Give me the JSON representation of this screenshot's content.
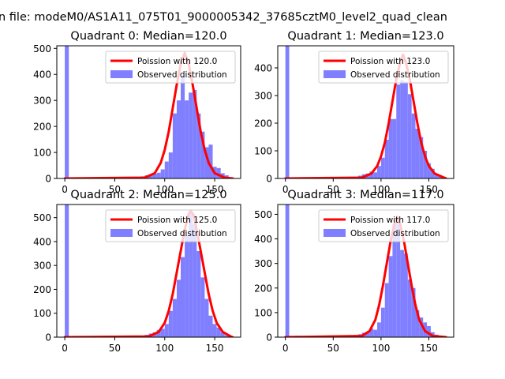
{
  "figure": {
    "suptitle": "n file: modeM0/AS1A11_075T01_9000005342_37685cztM0_level2_quad_clean"
  },
  "colors": {
    "histogram": "#7f7fff",
    "poisson": "#ff0000",
    "axes": "#000000",
    "background": "#ffffff"
  },
  "chart_data": [
    {
      "type": "bar",
      "title": "Quadrant 0: Median=120.0",
      "xlim": [
        -8,
        176
      ],
      "ylim": [
        0,
        510
      ],
      "xticks": [
        0,
        50,
        100,
        150
      ],
      "yticks": [
        0,
        100,
        200,
        300,
        400,
        500
      ],
      "bin_width": 4,
      "legend": {
        "placement": "upper right",
        "entries": [
          "Poission with 120.0",
          "Observed distribution"
        ]
      },
      "hist_bins": [
        [
          0,
          510
        ],
        [
          4,
          2
        ],
        [
          40,
          1
        ],
        [
          48,
          1
        ],
        [
          56,
          1
        ],
        [
          64,
          2
        ],
        [
          72,
          5
        ],
        [
          76,
          8
        ],
        [
          80,
          12
        ],
        [
          84,
          15
        ],
        [
          88,
          18
        ],
        [
          92,
          22
        ],
        [
          96,
          35
        ],
        [
          100,
          65
        ],
        [
          104,
          100
        ],
        [
          108,
          250
        ],
        [
          112,
          300
        ],
        [
          116,
          395
        ],
        [
          120,
          300
        ],
        [
          124,
          330
        ],
        [
          128,
          340
        ],
        [
          132,
          250
        ],
        [
          136,
          180
        ],
        [
          140,
          120
        ],
        [
          144,
          130
        ],
        [
          148,
          45
        ],
        [
          152,
          40
        ],
        [
          156,
          20
        ],
        [
          160,
          12
        ],
        [
          164,
          5
        ]
      ],
      "poisson_curve": {
        "name": "Poission with 120.0",
        "points": [
          [
            0,
            0
          ],
          [
            80,
            3
          ],
          [
            90,
            20
          ],
          [
            96,
            60
          ],
          [
            100,
            110
          ],
          [
            104,
            180
          ],
          [
            108,
            270
          ],
          [
            112,
            360
          ],
          [
            116,
            440
          ],
          [
            120,
            482
          ],
          [
            124,
            440
          ],
          [
            128,
            360
          ],
          [
            132,
            270
          ],
          [
            136,
            180
          ],
          [
            140,
            110
          ],
          [
            144,
            60
          ],
          [
            150,
            20
          ],
          [
            160,
            3
          ],
          [
            168,
            0
          ]
        ]
      }
    },
    {
      "type": "bar",
      "title": "Quadrant 1: Median=123.0",
      "xlim": [
        -8,
        176
      ],
      "ylim": [
        0,
        480
      ],
      "xticks": [
        0,
        50,
        100,
        150
      ],
      "yticks": [
        0,
        100,
        200,
        300,
        400
      ],
      "bin_width": 4,
      "legend": {
        "placement": "upper right",
        "entries": [
          "Poission with 123.0",
          "Observed distribution"
        ]
      },
      "hist_bins": [
        [
          0,
          480
        ],
        [
          4,
          2
        ],
        [
          40,
          1
        ],
        [
          56,
          2
        ],
        [
          64,
          2
        ],
        [
          72,
          6
        ],
        [
          76,
          10
        ],
        [
          80,
          15
        ],
        [
          84,
          18
        ],
        [
          88,
          25
        ],
        [
          92,
          22
        ],
        [
          96,
          45
        ],
        [
          100,
          75
        ],
        [
          104,
          140
        ],
        [
          108,
          215
        ],
        [
          112,
          215
        ],
        [
          116,
          340
        ],
        [
          120,
          355
        ],
        [
          124,
          350
        ],
        [
          128,
          305
        ],
        [
          132,
          235
        ],
        [
          136,
          180
        ],
        [
          140,
          150
        ],
        [
          144,
          100
        ],
        [
          148,
          55
        ],
        [
          152,
          35
        ],
        [
          156,
          15
        ],
        [
          160,
          8
        ],
        [
          164,
          3
        ]
      ],
      "poisson_curve": {
        "name": "Poission with 123.0",
        "points": [
          [
            0,
            0
          ],
          [
            80,
            3
          ],
          [
            90,
            18
          ],
          [
            96,
            45
          ],
          [
            100,
            80
          ],
          [
            104,
            130
          ],
          [
            108,
            200
          ],
          [
            112,
            280
          ],
          [
            116,
            360
          ],
          [
            120,
            420
          ],
          [
            123,
            448
          ],
          [
            126,
            420
          ],
          [
            130,
            360
          ],
          [
            134,
            280
          ],
          [
            138,
            200
          ],
          [
            142,
            130
          ],
          [
            146,
            80
          ],
          [
            150,
            45
          ],
          [
            156,
            18
          ],
          [
            166,
            3
          ],
          [
            168,
            0
          ]
        ]
      }
    },
    {
      "type": "bar",
      "title": "Quadrant 2: Median=125.0",
      "xlim": [
        -8,
        176
      ],
      "ylim": [
        0,
        555
      ],
      "xticks": [
        0,
        50,
        100,
        150
      ],
      "yticks": [
        0,
        100,
        200,
        300,
        400,
        500
      ],
      "bin_width": 4,
      "legend": {
        "placement": "upper right",
        "entries": [
          "Poission with 125.0",
          "Observed distribution"
        ]
      },
      "hist_bins": [
        [
          0,
          555
        ],
        [
          4,
          2
        ],
        [
          40,
          1
        ],
        [
          60,
          2
        ],
        [
          68,
          3
        ],
        [
          76,
          6
        ],
        [
          80,
          10
        ],
        [
          84,
          15
        ],
        [
          88,
          20
        ],
        [
          92,
          30
        ],
        [
          96,
          35
        ],
        [
          100,
          55
        ],
        [
          104,
          110
        ],
        [
          108,
          160
        ],
        [
          112,
          240
        ],
        [
          116,
          335
        ],
        [
          120,
          425
        ],
        [
          124,
          520
        ],
        [
          128,
          475
        ],
        [
          132,
          360
        ],
        [
          136,
          250
        ],
        [
          140,
          160
        ],
        [
          144,
          90
        ],
        [
          148,
          55
        ],
        [
          152,
          40
        ],
        [
          156,
          20
        ],
        [
          160,
          8
        ],
        [
          164,
          3
        ]
      ],
      "poisson_curve": {
        "name": "Poission with 125.0",
        "points": [
          [
            0,
            0
          ],
          [
            84,
            3
          ],
          [
            94,
            22
          ],
          [
            100,
            60
          ],
          [
            104,
            110
          ],
          [
            108,
            180
          ],
          [
            112,
            270
          ],
          [
            116,
            360
          ],
          [
            120,
            450
          ],
          [
            124,
            515
          ],
          [
            126,
            528
          ],
          [
            129,
            510
          ],
          [
            132,
            450
          ],
          [
            136,
            360
          ],
          [
            140,
            270
          ],
          [
            144,
            180
          ],
          [
            148,
            110
          ],
          [
            152,
            60
          ],
          [
            158,
            22
          ],
          [
            166,
            3
          ],
          [
            168,
            0
          ]
        ]
      }
    },
    {
      "type": "bar",
      "title": "Quadrant 3: Median=117.0",
      "xlim": [
        -8,
        176
      ],
      "ylim": [
        0,
        540
      ],
      "xticks": [
        0,
        50,
        100,
        150
      ],
      "yticks": [
        0,
        100,
        200,
        300,
        400,
        500
      ],
      "bin_width": 4,
      "legend": {
        "placement": "upper right",
        "entries": [
          "Poission with 117.0",
          "Observed distribution"
        ]
      },
      "hist_bins": [
        [
          0,
          540
        ],
        [
          4,
          2
        ],
        [
          40,
          1
        ],
        [
          48,
          2
        ],
        [
          56,
          2
        ],
        [
          64,
          3
        ],
        [
          72,
          8
        ],
        [
          76,
          12
        ],
        [
          80,
          18
        ],
        [
          84,
          22
        ],
        [
          88,
          35
        ],
        [
          92,
          30
        ],
        [
          96,
          60
        ],
        [
          100,
          120
        ],
        [
          104,
          220
        ],
        [
          108,
          330
        ],
        [
          112,
          460
        ],
        [
          116,
          470
        ],
        [
          120,
          355
        ],
        [
          124,
          340
        ],
        [
          128,
          235
        ],
        [
          132,
          200
        ],
        [
          136,
          110
        ],
        [
          140,
          80
        ],
        [
          144,
          60
        ],
        [
          148,
          45
        ],
        [
          152,
          20
        ],
        [
          156,
          10
        ],
        [
          160,
          5
        ]
      ],
      "poisson_curve": {
        "name": "Poission with 117.0",
        "points": [
          [
            0,
            0
          ],
          [
            80,
            5
          ],
          [
            88,
            25
          ],
          [
            94,
            70
          ],
          [
            98,
            130
          ],
          [
            102,
            210
          ],
          [
            106,
            300
          ],
          [
            110,
            390
          ],
          [
            114,
            460
          ],
          [
            117,
            490
          ],
          [
            120,
            460
          ],
          [
            124,
            390
          ],
          [
            128,
            300
          ],
          [
            132,
            210
          ],
          [
            136,
            130
          ],
          [
            140,
            70
          ],
          [
            146,
            25
          ],
          [
            154,
            5
          ],
          [
            168,
            0
          ]
        ]
      }
    }
  ]
}
